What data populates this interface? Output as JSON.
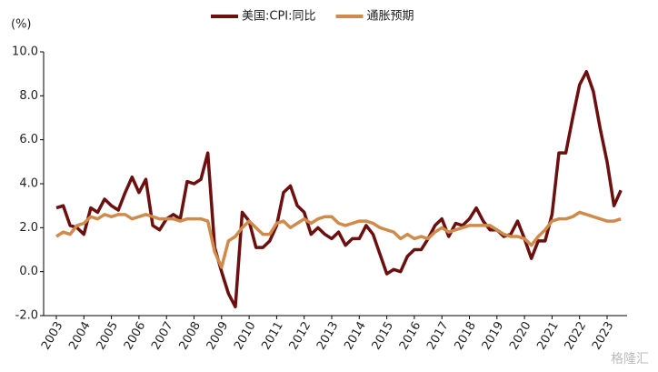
{
  "chart_data": {
    "type": "line",
    "y_label": "(%)",
    "watermark": "格隆汇",
    "categories": [
      "2003",
      null,
      null,
      null,
      "2004",
      null,
      null,
      null,
      "2005",
      null,
      null,
      null,
      "2006",
      null,
      null,
      null,
      "2007",
      null,
      null,
      null,
      "2008",
      null,
      null,
      null,
      "2009",
      null,
      null,
      null,
      "2010",
      null,
      null,
      null,
      "2011",
      null,
      null,
      null,
      "2012",
      null,
      null,
      null,
      "2013",
      null,
      null,
      null,
      "2014",
      null,
      null,
      null,
      "2015",
      null,
      null,
      null,
      "2016",
      null,
      null,
      null,
      "2017",
      null,
      null,
      null,
      "2018",
      null,
      null,
      null,
      "2019",
      null,
      null,
      null,
      "2020",
      null,
      null,
      null,
      "2021",
      null,
      null,
      null,
      "2022",
      null,
      null,
      null,
      "2023",
      null,
      null
    ],
    "series": [
      {
        "name": "美国:CPI:同比",
        "color": "#6b0f0f",
        "values": [
          2.9,
          3.0,
          2.1,
          2.0,
          1.7,
          2.9,
          2.7,
          3.3,
          3.0,
          2.8,
          3.6,
          4.3,
          3.6,
          4.2,
          2.1,
          1.9,
          2.4,
          2.6,
          2.4,
          4.1,
          4.0,
          4.2,
          5.4,
          1.1,
          0.0,
          -1.0,
          -1.6,
          2.7,
          2.3,
          1.1,
          1.1,
          1.4,
          2.1,
          3.6,
          3.9,
          3.0,
          2.7,
          1.7,
          2.0,
          1.7,
          1.5,
          1.8,
          1.2,
          1.5,
          1.5,
          2.1,
          1.7,
          0.8,
          -0.1,
          0.1,
          0.0,
          0.7,
          1.0,
          1.0,
          1.5,
          2.1,
          2.4,
          1.6,
          2.2,
          2.1,
          2.4,
          2.9,
          2.3,
          1.9,
          1.9,
          1.6,
          1.7,
          2.3,
          1.5,
          0.6,
          1.4,
          1.4,
          2.6,
          5.4,
          5.4,
          7.0,
          8.5,
          9.1,
          8.2,
          6.5,
          5.0,
          3.0,
          3.7
        ]
      },
      {
        "name": "通胀预期",
        "color": "#d08a4a",
        "values": [
          1.6,
          1.8,
          1.7,
          2.1,
          2.2,
          2.5,
          2.4,
          2.6,
          2.5,
          2.6,
          2.6,
          2.4,
          2.5,
          2.6,
          2.5,
          2.4,
          2.4,
          2.4,
          2.3,
          2.4,
          2.4,
          2.4,
          2.3,
          0.9,
          0.2,
          1.4,
          1.6,
          2.0,
          2.3,
          2.0,
          1.7,
          1.7,
          2.2,
          2.3,
          2.0,
          2.2,
          2.4,
          2.2,
          2.4,
          2.5,
          2.5,
          2.2,
          2.1,
          2.2,
          2.3,
          2.3,
          2.2,
          2.0,
          1.9,
          1.8,
          1.5,
          1.7,
          1.5,
          1.6,
          1.5,
          1.8,
          2.0,
          1.8,
          1.9,
          2.0,
          2.1,
          2.1,
          2.1,
          2.1,
          1.9,
          1.7,
          1.6,
          1.6,
          1.5,
          1.2,
          1.6,
          1.9,
          2.3,
          2.4,
          2.4,
          2.5,
          2.7,
          2.6,
          2.5,
          2.4,
          2.3,
          2.3,
          2.4
        ]
      }
    ],
    "ylim": [
      -2,
      10
    ],
    "yticks": [
      {
        "value": -2,
        "label": "-2.0"
      },
      {
        "value": 0,
        "label": "0.0"
      },
      {
        "value": 2,
        "label": "2.0"
      },
      {
        "value": 4,
        "label": "4.0"
      },
      {
        "value": 6,
        "label": "6.0"
      },
      {
        "value": 8,
        "label": "8.0"
      },
      {
        "value": 10,
        "label": "10.0"
      }
    ],
    "legend": "top"
  }
}
